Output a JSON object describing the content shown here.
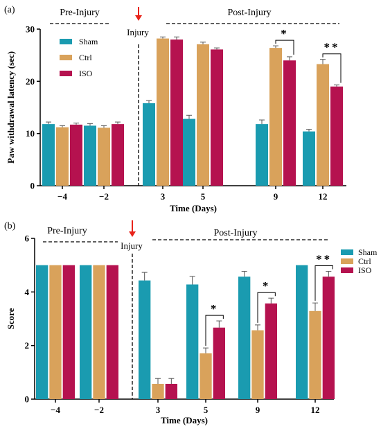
{
  "colors": {
    "Sham": "#1a9bb0",
    "Ctrl": "#d9a25b",
    "ISO": "#b5124f",
    "arrow": "#e8231a"
  },
  "chart_data": [
    {
      "panel_label": "(a)",
      "type": "bar",
      "xlabel": "Time (Days)",
      "ylabel": "Paw withdrawal latency (sec)",
      "ylim": [
        0,
        30
      ],
      "yticks": [
        "0",
        "10",
        "20",
        "30"
      ],
      "categories": [
        "−4",
        "−2",
        "3",
        "5",
        "9",
        "12"
      ],
      "series": [
        {
          "name": "Sham",
          "values": [
            11.8,
            11.5,
            15.8,
            12.8,
            11.8,
            10.4
          ],
          "errors": [
            0.4,
            0.4,
            0.5,
            0.7,
            0.8,
            0.4
          ]
        },
        {
          "name": "Ctrl",
          "values": [
            11.2,
            11.1,
            28.2,
            27.1,
            26.4,
            23.3
          ],
          "errors": [
            0.3,
            0.4,
            0.3,
            0.4,
            0.4,
            0.9
          ]
        },
        {
          "name": "ISO",
          "values": [
            11.7,
            11.8,
            28.0,
            26.1,
            24.0,
            19.0
          ],
          "errors": [
            0.3,
            0.4,
            0.5,
            0.3,
            0.7,
            0.3
          ]
        }
      ],
      "pre_label": "Pre-Injury",
      "post_label": "Post-Injury",
      "injury_label": "Injury",
      "legend_position": "top-left",
      "significance": [
        {
          "category": "9",
          "marker": "*"
        },
        {
          "category": "12",
          "marker": "**"
        }
      ]
    },
    {
      "panel_label": "(b)",
      "type": "bar",
      "xlabel": "Time (Days)",
      "ylabel": "Score",
      "ylim": [
        0,
        6
      ],
      "yticks": [
        "0",
        "2",
        "4",
        "6"
      ],
      "categories": [
        "−4",
        "−2",
        "3",
        "5",
        "9",
        "12"
      ],
      "series": [
        {
          "name": "Sham",
          "values": [
            5.0,
            5.0,
            4.43,
            4.28,
            4.57,
            5.0
          ],
          "errors": [
            0,
            0,
            0.3,
            0.3,
            0.2,
            0
          ]
        },
        {
          "name": "Ctrl",
          "values": [
            5.0,
            5.0,
            0.57,
            1.71,
            2.57,
            3.29
          ],
          "errors": [
            0,
            0,
            0.2,
            0.2,
            0.2,
            0.3
          ]
        },
        {
          "name": "ISO",
          "values": [
            5.0,
            5.0,
            0.57,
            2.67,
            3.57,
            4.57
          ],
          "errors": [
            0,
            0,
            0.2,
            0.25,
            0.2,
            0.2
          ]
        }
      ],
      "pre_label": "Pre-Injury",
      "post_label": "Post-Injury",
      "injury_label": "Injury",
      "legend_position": "right",
      "significance": [
        {
          "category": "5",
          "marker": "*"
        },
        {
          "category": "9",
          "marker": "*"
        },
        {
          "category": "12",
          "marker": "**"
        }
      ]
    }
  ]
}
